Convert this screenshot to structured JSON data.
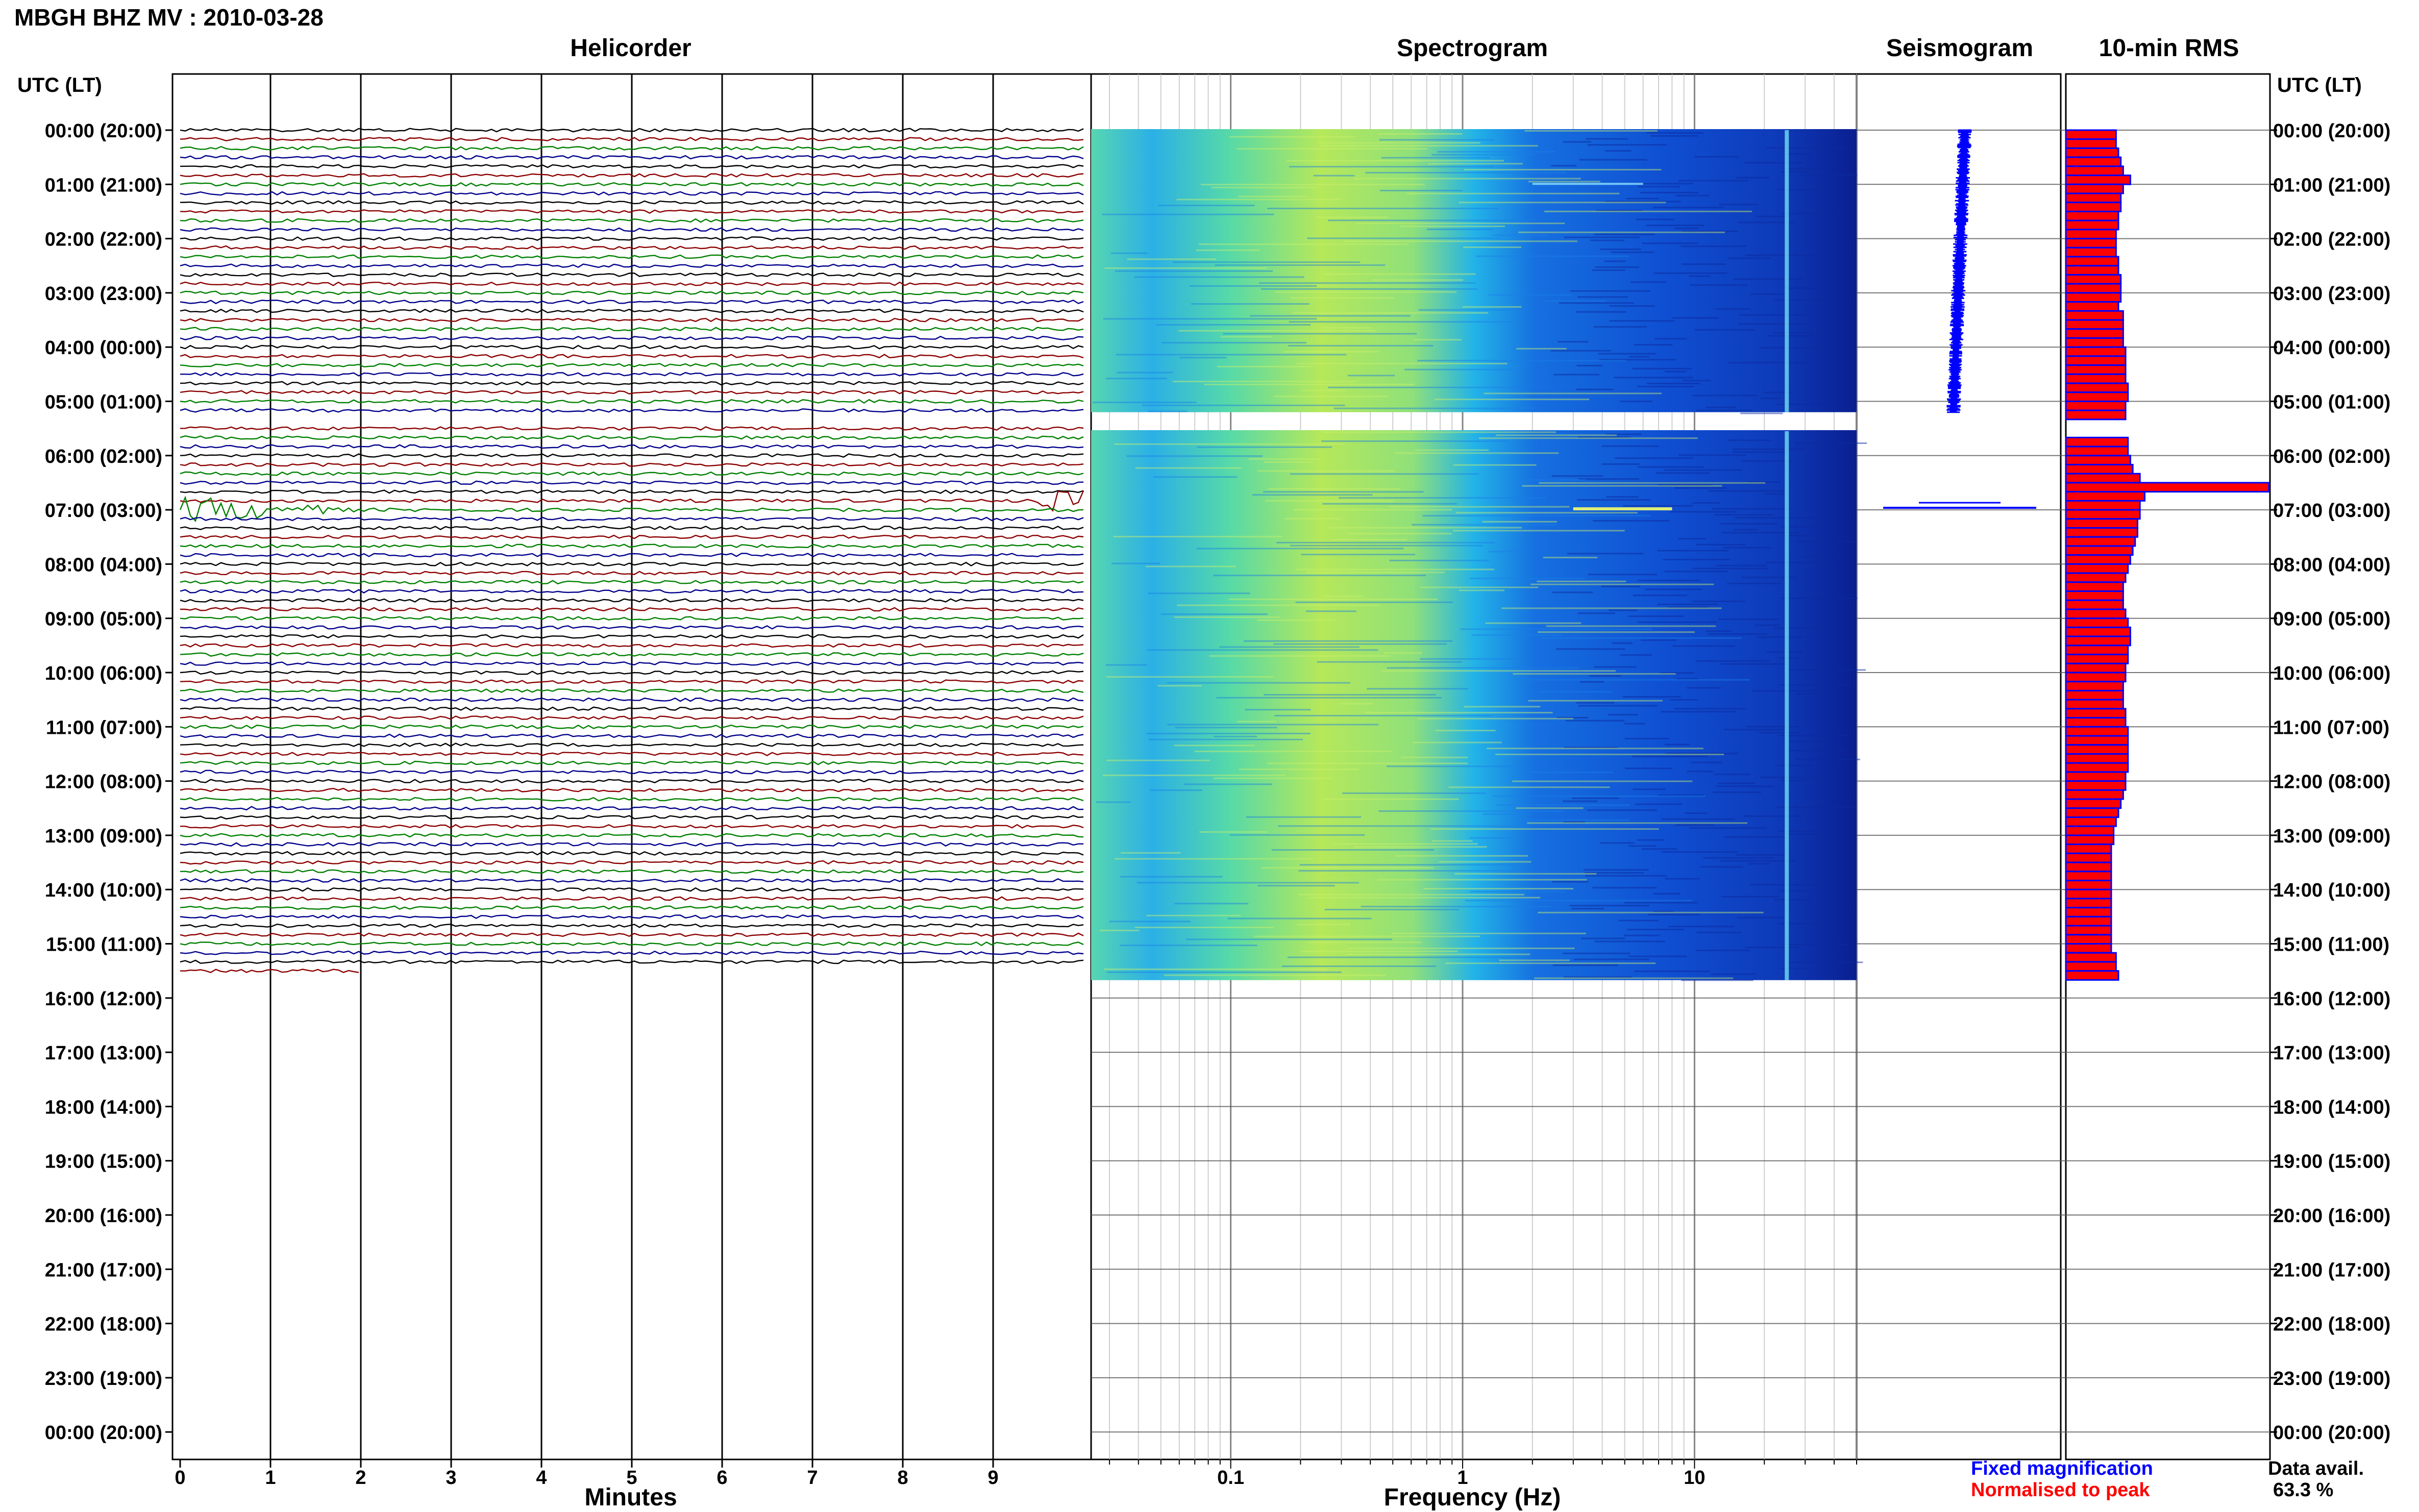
{
  "chart_data": {
    "type": "helicorder-spectrogram",
    "station_title": "MBGH BHZ MV : 2010-03-28",
    "panels": {
      "helicorder": "Helicorder",
      "spectrogram": "Spectrogram",
      "seismogram": "Seismogram",
      "rms": "10-min RMS"
    },
    "time_axis_label": "UTC (LT)",
    "hour_labels": [
      "00:00 (20:00)",
      "01:00 (21:00)",
      "02:00 (22:00)",
      "03:00 (23:00)",
      "04:00 (00:00)",
      "05:00 (01:00)",
      "06:00 (02:00)",
      "07:00 (03:00)",
      "08:00 (04:00)",
      "09:00 (05:00)",
      "10:00 (06:00)",
      "11:00 (07:00)",
      "12:00 (08:00)",
      "13:00 (09:00)",
      "14:00 (10:00)",
      "15:00 (11:00)",
      "16:00 (12:00)",
      "17:00 (13:00)",
      "18:00 (14:00)",
      "19:00 (15:00)",
      "20:00 (16:00)",
      "21:00 (17:00)",
      "22:00 (18:00)",
      "23:00 (19:00)",
      "00:00 (20:00)"
    ],
    "helicorder_xlabel": "Minutes",
    "helicorder_xticks": [
      "0",
      "1",
      "2",
      "3",
      "4",
      "5",
      "6",
      "7",
      "8",
      "9"
    ],
    "helicorder_xlim": [
      0,
      10
    ],
    "spectrogram_xlabel": "Frequency (Hz)",
    "spectrogram_xticks": [
      "0.1",
      "1",
      "10"
    ],
    "spectrogram_xlim": [
      0.025,
      50
    ],
    "data_end_hour": 15.67,
    "data_gap_hours": [
      5.2,
      5.55
    ],
    "event_hour": 7.0,
    "rms_10min": [
      2.1,
      2.1,
      2.2,
      2.3,
      2.4,
      2.7,
      2.4,
      2.3,
      2.3,
      2.2,
      2.2,
      2.1,
      2.1,
      2.1,
      2.2,
      2.2,
      2.3,
      2.3,
      2.3,
      2.2,
      2.4,
      2.4,
      2.4,
      2.4,
      2.5,
      2.5,
      2.5,
      2.5,
      2.6,
      2.6,
      2.5,
      2.5,
      null,
      null,
      2.6,
      2.6,
      2.7,
      2.8,
      3.1,
      8.5,
      3.3,
      3.1,
      3.1,
      3.0,
      3.0,
      2.9,
      2.8,
      2.7,
      2.6,
      2.5,
      2.4,
      2.4,
      2.4,
      2.5,
      2.6,
      2.7,
      2.7,
      2.6,
      2.6,
      2.5,
      2.5,
      2.4,
      2.4,
      2.4,
      2.5,
      2.5,
      2.6,
      2.6,
      2.6,
      2.6,
      2.6,
      2.5,
      2.5,
      2.4,
      2.3,
      2.2,
      2.1,
      2.0,
      2.0,
      1.9,
      1.9,
      1.9,
      1.9,
      1.9,
      1.9,
      1.9,
      1.9,
      1.9,
      1.9,
      1.9,
      1.9,
      2.1,
      2.1,
      2.2
    ],
    "legend": {
      "fixed": "Fixed magnification",
      "fixed_color": "#0000ff",
      "normalised": "Normalised to peak",
      "normalised_color": "#ff0000"
    },
    "availability_label": "Data avail.",
    "availability_value": "63.3 %",
    "trace_colors": [
      "#000000",
      "#8b0000",
      "#008000",
      "#00008b"
    ]
  }
}
